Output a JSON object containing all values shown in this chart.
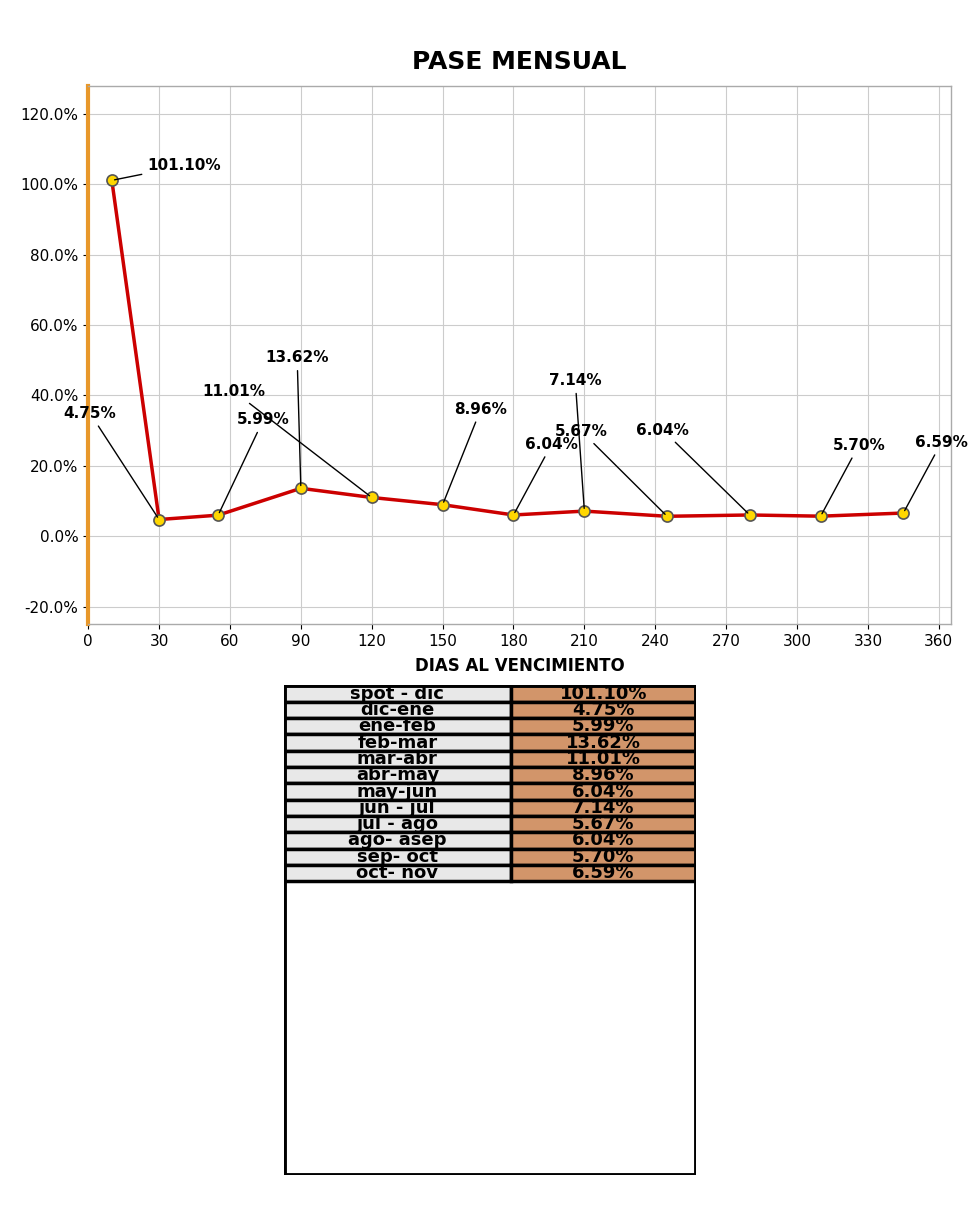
{
  "title": "PASE MENSUAL",
  "xlabel": "DIAS AL VENCIMIENTO",
  "x_values": [
    10,
    30,
    55,
    90,
    120,
    150,
    180,
    210,
    245,
    280,
    310,
    345
  ],
  "y_values": [
    101.1,
    4.75,
    5.99,
    13.62,
    11.01,
    8.96,
    6.04,
    7.14,
    5.67,
    6.04,
    5.7,
    6.59
  ],
  "labels": [
    "101.10%",
    "4.75%",
    "5.99%",
    "13.62%",
    "11.01%",
    "8.96%",
    "6.04%",
    "7.14%",
    "5.67%",
    "6.04%",
    "5.70%",
    "6.59%"
  ],
  "x_ticks": [
    0,
    30,
    60,
    90,
    120,
    150,
    180,
    210,
    240,
    270,
    300,
    330,
    360
  ],
  "y_ticks": [
    -20.0,
    0.0,
    20.0,
    40.0,
    60.0,
    80.0,
    100.0,
    120.0
  ],
  "ylim": [
    -25,
    128
  ],
  "xlim": [
    0,
    365
  ],
  "line_color": "#CC0000",
  "marker_face_color": "#FFD700",
  "marker_edge_color": "#555555",
  "marker_size": 8,
  "grid_color": "#CCCCCC",
  "background_color": "#FFFFFF",
  "plot_bg_color": "#FFFFFF",
  "title_fontsize": 18,
  "label_fontsize": 11,
  "tick_fontsize": 11,
  "xlabel_fontsize": 12,
  "header_bar_color": "#1F1F1F",
  "left_spine_color": "#E8982A",
  "table_labels": [
    "spot - dic",
    "dic-ene",
    "ene-feb",
    "feb-mar",
    "mar-abr",
    "abr-may",
    "may-jun",
    "jun - jul",
    "jul - ago",
    "ago- asep",
    "sep- oct",
    "oct- nov"
  ],
  "table_values": [
    "101.10%",
    "4.75%",
    "5.99%",
    "13.62%",
    "11.01%",
    "8.96%",
    "6.04%",
    "7.14%",
    "5.67%",
    "6.04%",
    "5.70%",
    "6.59%"
  ],
  "table_left_bg": "#E8E8E8",
  "table_right_bg": "#D2956A",
  "table_border_color": "#000000",
  "table_fontsize": 13,
  "annot_configs": [
    [
      10,
      101.1,
      "101.10%",
      15,
      2,
      "left"
    ],
    [
      30,
      4.75,
      "4.75%",
      -18,
      28,
      "right"
    ],
    [
      55,
      5.99,
      "5.99%",
      8,
      25,
      "left"
    ],
    [
      90,
      13.62,
      "13.62%",
      -15,
      35,
      "left"
    ],
    [
      120,
      11.01,
      "11.01%",
      -45,
      28,
      "right"
    ],
    [
      150,
      8.96,
      "8.96%",
      5,
      25,
      "left"
    ],
    [
      180,
      6.04,
      "6.04%",
      5,
      18,
      "left"
    ],
    [
      210,
      7.14,
      "7.14%",
      -15,
      35,
      "left"
    ],
    [
      245,
      5.67,
      "5.67%",
      -25,
      22,
      "right"
    ],
    [
      280,
      6.04,
      "6.04%",
      -48,
      22,
      "left"
    ],
    [
      310,
      5.7,
      "5.70%",
      5,
      18,
      "left"
    ],
    [
      345,
      6.59,
      "6.59%",
      5,
      18,
      "left"
    ]
  ]
}
